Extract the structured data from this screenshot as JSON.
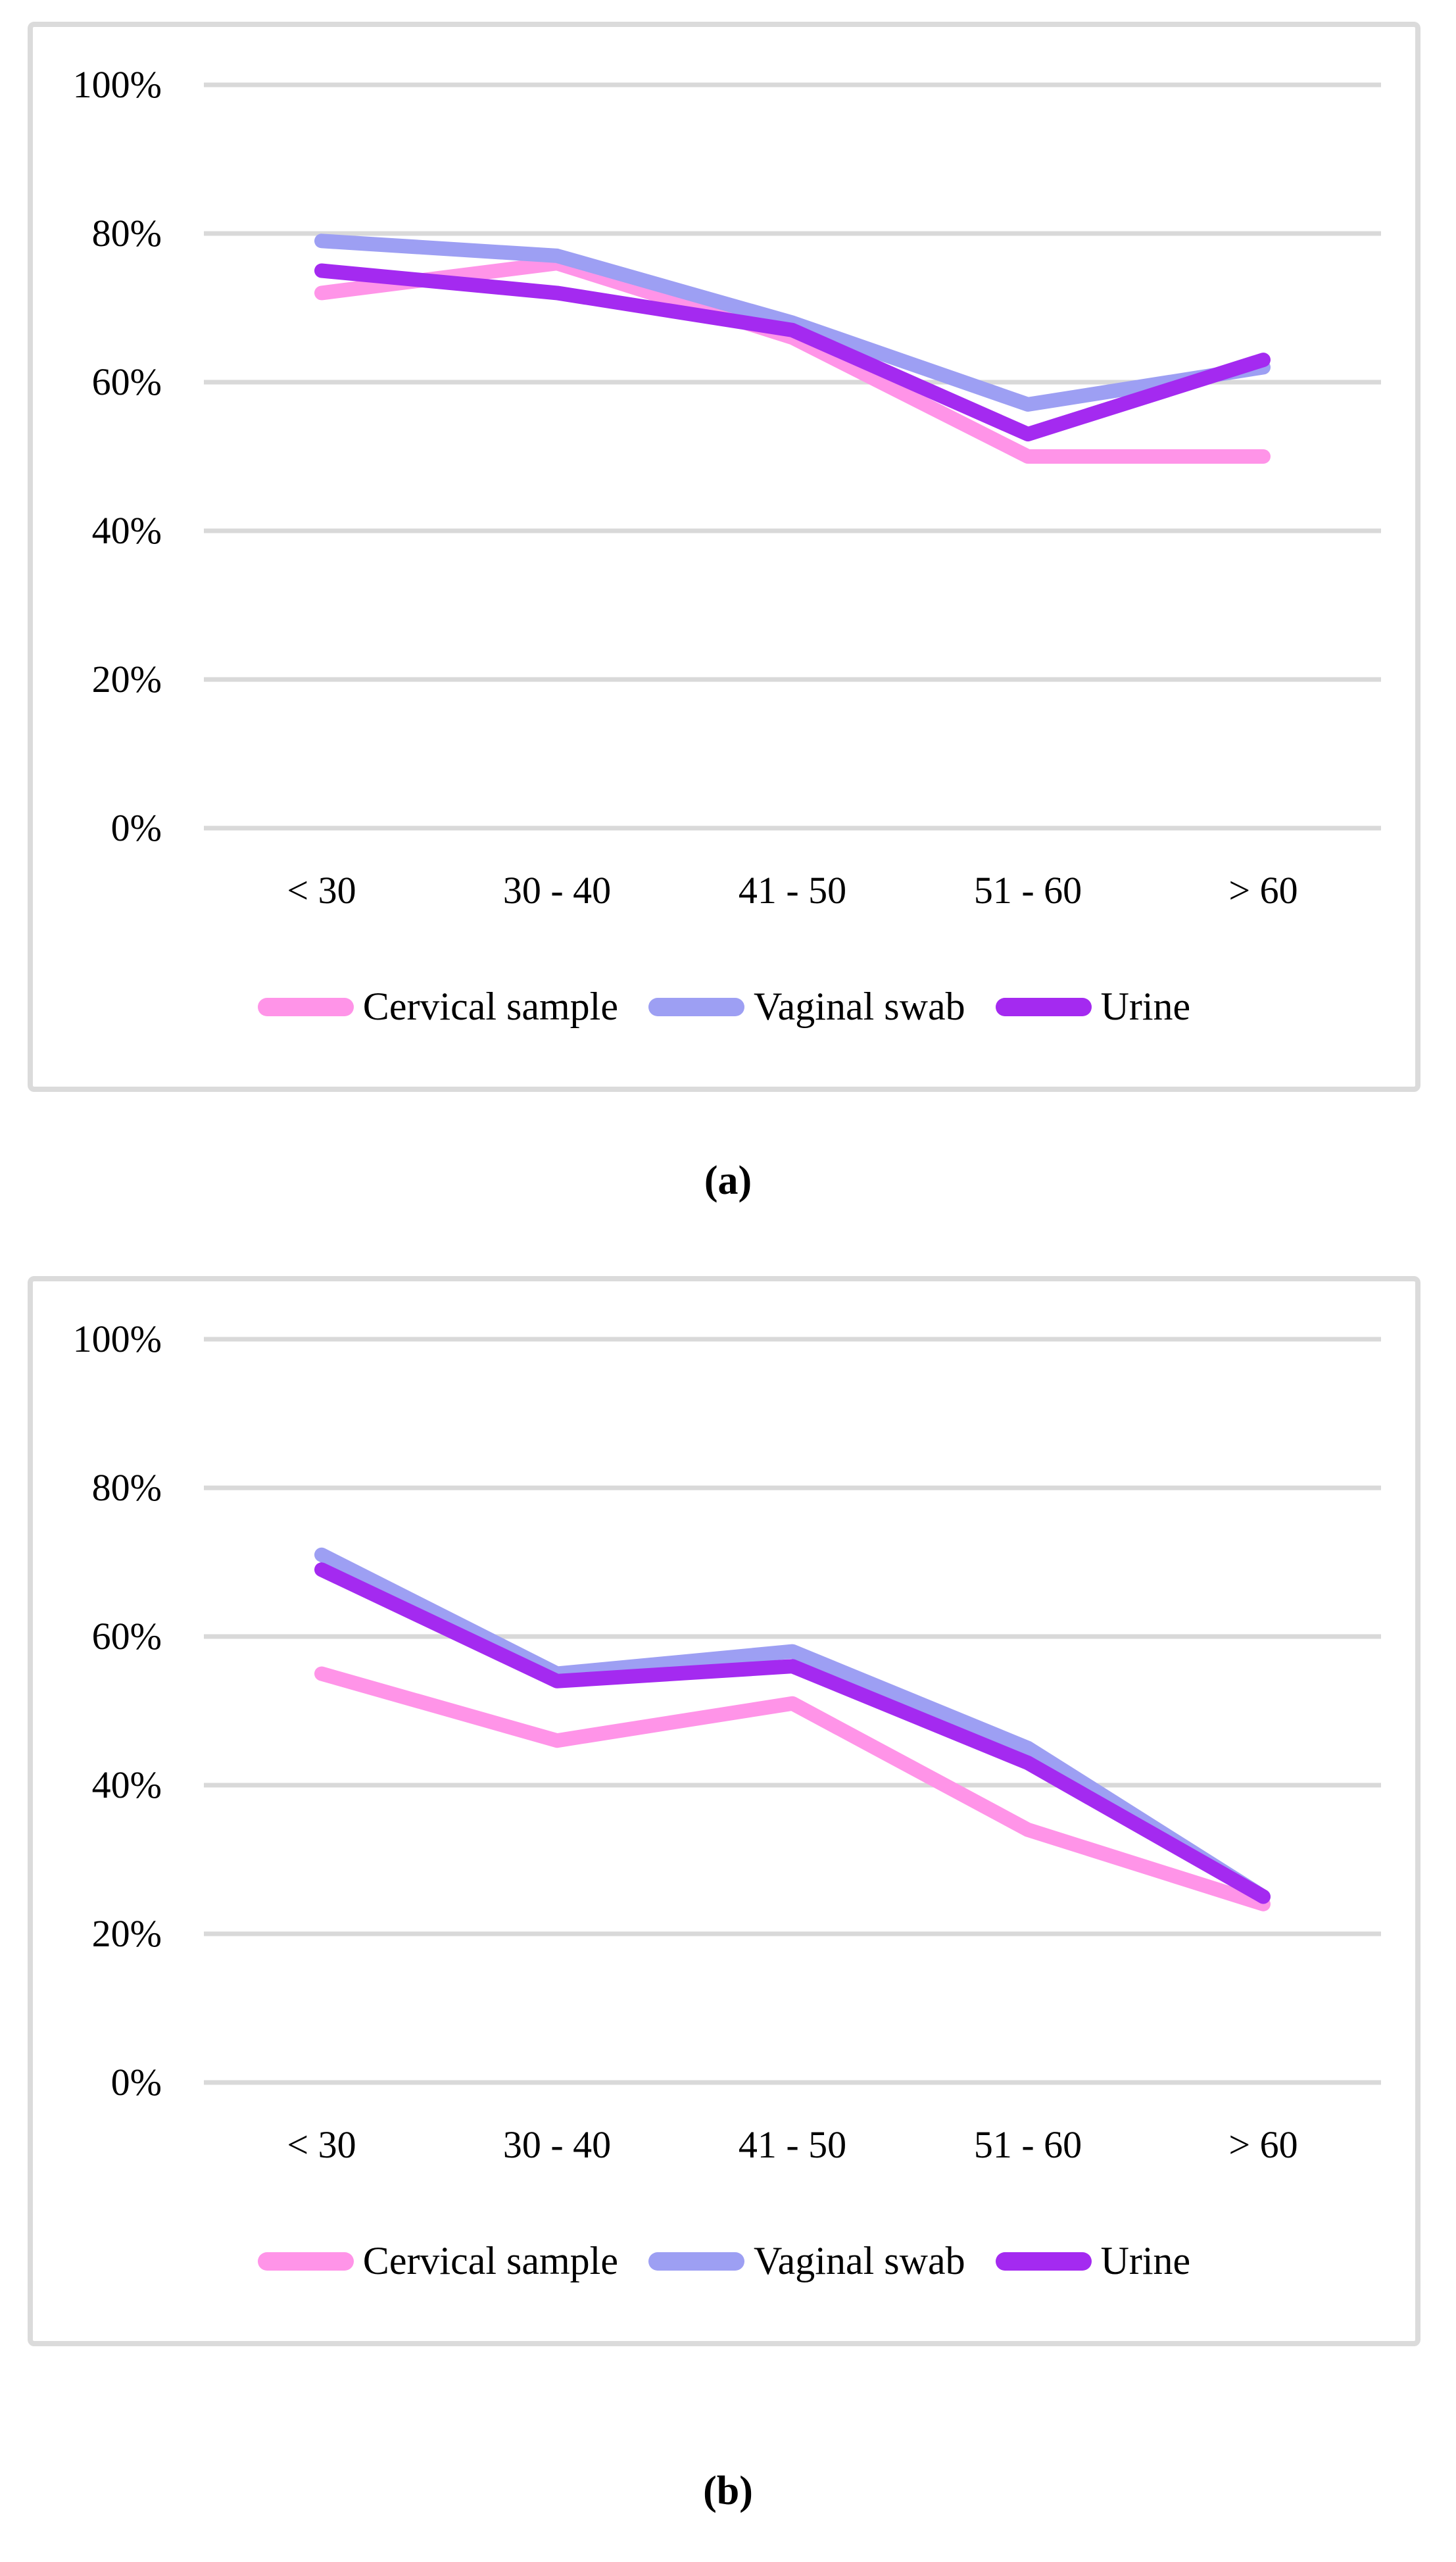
{
  "figure": {
    "background": "#FFFFFF",
    "panel_border_color": "#DBDBDB",
    "grid_color": "#D9D9D9",
    "captions": [
      "(a)",
      "(b)"
    ]
  },
  "chart_data": [
    {
      "id": "a",
      "type": "line",
      "caption": "(a)",
      "title": "",
      "xlabel": "",
      "ylabel": "",
      "units": "percent",
      "categories": [
        "< 30",
        "30 - 40",
        "41 - 50",
        "51 - 60",
        "> 60"
      ],
      "y_tick_labels": [
        "100%",
        "80%",
        "60%",
        "40%",
        "20%",
        "0%"
      ],
      "ylim": [
        0,
        100
      ],
      "grid": true,
      "legend_position": "bottom",
      "series": [
        {
          "name": "Cervical sample",
          "color": "#FF94E8",
          "values": [
            72,
            76,
            66,
            50,
            50
          ]
        },
        {
          "name": "Vaginal swab",
          "color": "#9D9FF3",
          "values": [
            79,
            77,
            68,
            57,
            62
          ]
        },
        {
          "name": "Urine",
          "color": "#A42AF0",
          "values": [
            75,
            72,
            67,
            53,
            63
          ]
        }
      ]
    },
    {
      "id": "b",
      "type": "line",
      "caption": "(b)",
      "title": "",
      "xlabel": "",
      "ylabel": "",
      "units": "percent",
      "categories": [
        "< 30",
        "30 - 40",
        "41 - 50",
        "51 - 60",
        "> 60"
      ],
      "y_tick_labels": [
        "100%",
        "80%",
        "60%",
        "40%",
        "20%",
        "0%"
      ],
      "ylim": [
        0,
        100
      ],
      "grid": true,
      "legend_position": "bottom",
      "series": [
        {
          "name": "Cervical sample",
          "color": "#FF94E8",
          "values": [
            55,
            46,
            51,
            34,
            24
          ]
        },
        {
          "name": "Vaginal swab",
          "color": "#9D9FF3",
          "values": [
            71,
            55,
            58,
            45,
            25
          ]
        },
        {
          "name": "Urine",
          "color": "#A42AF0",
          "values": [
            69,
            54,
            56,
            43,
            25
          ]
        }
      ]
    }
  ]
}
